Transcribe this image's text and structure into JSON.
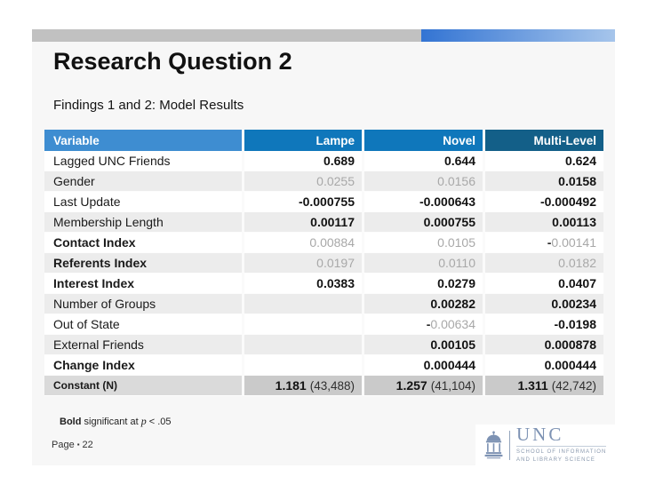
{
  "slide": {
    "title": "Research Question 2",
    "subtitle": "Findings 1 and 2: Model Results",
    "footnote": {
      "bold_word": "Bold",
      "mid": " significant at ",
      "p_symbol": "p",
      "tail": " < .05"
    },
    "page_label": "Page",
    "page_bullet": "▪",
    "page_number": "22"
  },
  "table": {
    "columns": [
      "Variable",
      "Lampe",
      "Novel",
      "Multi-Level"
    ],
    "rows": [
      {
        "label": "Lagged UNC Friends",
        "bold_label": false,
        "shade": "white",
        "values": [
          {
            "style": "sig",
            "text": "0.689"
          },
          {
            "style": "sig",
            "text": "0.644"
          },
          {
            "style": "sig",
            "text": "0.624"
          }
        ]
      },
      {
        "label": "Gender",
        "bold_label": false,
        "shade": "gray",
        "values": [
          {
            "style": "ns",
            "text": "0.0255"
          },
          {
            "style": "ns",
            "text": "0.0156"
          },
          {
            "style": "sig",
            "text": "0.0158"
          }
        ]
      },
      {
        "label": "Last Update",
        "bold_label": false,
        "shade": "white",
        "values": [
          {
            "style": "sig",
            "text": "-0.000755"
          },
          {
            "style": "sig",
            "text": "-0.000643"
          },
          {
            "style": "sig",
            "text": "-0.000492"
          }
        ]
      },
      {
        "label": "Membership Length",
        "bold_label": false,
        "shade": "gray",
        "values": [
          {
            "style": "sig",
            "text": "0.00117"
          },
          {
            "style": "sig",
            "text": "0.000755"
          },
          {
            "style": "sig",
            "text": "0.00113"
          }
        ]
      },
      {
        "label": "Contact Index",
        "bold_label": true,
        "shade": "white",
        "values": [
          {
            "style": "ns",
            "text": "0.00884"
          },
          {
            "style": "ns",
            "text": "0.0105"
          },
          {
            "style": "mixed",
            "neg": "-",
            "text": "0.00141"
          }
        ]
      },
      {
        "label": "Referents Index",
        "bold_label": true,
        "shade": "gray",
        "values": [
          {
            "style": "ns",
            "text": "0.0197"
          },
          {
            "style": "ns",
            "text": "0.0110"
          },
          {
            "style": "ns",
            "text": "0.0182"
          }
        ]
      },
      {
        "label": "Interest Index",
        "bold_label": true,
        "shade": "white",
        "values": [
          {
            "style": "sig",
            "text": "0.0383"
          },
          {
            "style": "sig",
            "text": "0.0279"
          },
          {
            "style": "sig",
            "text": "0.0407"
          }
        ]
      },
      {
        "label": "Number of Groups",
        "bold_label": false,
        "shade": "gray",
        "values": [
          {
            "style": "empty"
          },
          {
            "style": "sig",
            "text": "0.00282"
          },
          {
            "style": "sig",
            "text": "0.00234"
          }
        ]
      },
      {
        "label": "Out of State",
        "bold_label": false,
        "shade": "white",
        "values": [
          {
            "style": "empty"
          },
          {
            "style": "mixed",
            "neg": "-",
            "text": "0.00634"
          },
          {
            "style": "sig",
            "text": "-0.0198"
          }
        ]
      },
      {
        "label": "External Friends",
        "bold_label": false,
        "shade": "gray",
        "values": [
          {
            "style": "empty"
          },
          {
            "style": "sig",
            "text": "0.00105"
          },
          {
            "style": "sig",
            "text": "0.000878"
          }
        ]
      },
      {
        "label": "Change Index",
        "bold_label": true,
        "shade": "white",
        "values": [
          {
            "style": "empty"
          },
          {
            "style": "sig",
            "text": "0.000444"
          },
          {
            "style": "sig",
            "text": "0.000444"
          }
        ]
      },
      {
        "label": "Constant (N)",
        "bold_label": true,
        "small_label": true,
        "shade": "constant",
        "values": [
          {
            "style": "const",
            "bold": "1.181",
            "paren": "(43,488)"
          },
          {
            "style": "const",
            "bold": "1.257",
            "paren": "(41,104)"
          },
          {
            "style": "const",
            "bold": "1.311",
            "paren": "(42,742)"
          }
        ]
      }
    ]
  },
  "logo": {
    "name": "UNC",
    "school_line1": "SCHOOL OF INFORMATION",
    "school_line2": "AND LIBRARY SCIENCE"
  },
  "colors": {
    "slide_bg": "#F7F7F7",
    "topbar_gray": "#C1C1C1",
    "accent_blue_gradient_start": "#3374D3",
    "accent_blue_gradient_end": "#A6C5EB",
    "header_variable_bg": "#3E8DD1",
    "header_lampe_bg": "#0F77BB",
    "header_novel_bg": "#0F77BB",
    "header_multilevel_bg": "#135F88",
    "row_alt_bg": "#ECECEC",
    "constant_label_bg": "#DADADA",
    "constant_value_bg": "#CACACA",
    "nonsignificant_text": "#A8A8A8",
    "logo_slate": "#7D92B3"
  }
}
